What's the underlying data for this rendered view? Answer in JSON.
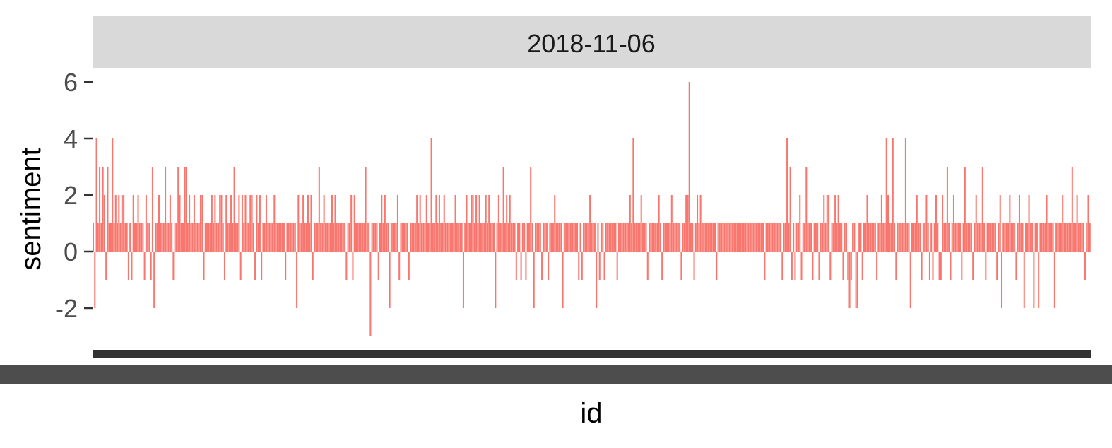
{
  "chart_data": {
    "type": "bar",
    "facet_label": "2018-11-06",
    "xlabel": "id",
    "ylabel": "sentiment",
    "ylim": [
      -3.5,
      6.2
    ],
    "yticks": [
      -2,
      0,
      2,
      4,
      6
    ],
    "ytick_labels": [
      "-2",
      "0",
      "2",
      "4",
      "6"
    ],
    "legend": "none",
    "grid": false,
    "colors": {
      "bar": "#F8766D",
      "strip_bg": "#D9D9D9",
      "axis_band": "#333333",
      "lower_band": "#4D4D4D",
      "tick": "#333333"
    },
    "values": [
      1,
      -2,
      4,
      1,
      3,
      1,
      3,
      2,
      -1,
      3,
      1,
      1,
      4,
      1,
      2,
      1,
      2,
      1,
      2,
      2,
      1,
      1,
      -1,
      1,
      -1,
      2,
      1,
      1,
      2,
      1,
      1,
      1,
      -1,
      2,
      1,
      1,
      -1,
      3,
      -2,
      1,
      1,
      2,
      1,
      1,
      1,
      3,
      1,
      1,
      2,
      1,
      -1,
      1,
      1,
      3,
      2,
      1,
      1,
      3,
      3,
      1,
      2,
      1,
      1,
      2,
      1,
      1,
      1,
      2,
      2,
      -1,
      1,
      1,
      1,
      1,
      2,
      1,
      2,
      1,
      1,
      2,
      2,
      1,
      -1,
      2,
      1,
      1,
      2,
      1,
      3,
      1,
      1,
      2,
      -1,
      2,
      1,
      2,
      1,
      1,
      2,
      2,
      1,
      -1,
      2,
      1,
      2,
      -1,
      1,
      1,
      2,
      1,
      1,
      1,
      1,
      2,
      1,
      1,
      1,
      1,
      1,
      1,
      -1,
      1,
      1,
      1,
      1,
      1,
      1,
      -2,
      2,
      1,
      1,
      2,
      1,
      1,
      2,
      1,
      2,
      -1,
      1,
      1,
      1,
      3,
      1,
      1,
      2,
      1,
      1,
      1,
      1,
      2,
      1,
      2,
      1,
      1,
      1,
      1,
      1,
      1,
      -1,
      1,
      1,
      2,
      -1,
      2,
      1,
      1,
      1,
      1,
      1,
      1,
      3,
      1,
      1,
      -3,
      1,
      1,
      1,
      1,
      -1,
      1,
      2,
      1,
      2,
      1,
      1,
      -2,
      1,
      1,
      1,
      1,
      2,
      -1,
      1,
      1,
      1,
      1,
      1,
      -1,
      1,
      1,
      1,
      1,
      2,
      1,
      2,
      1,
      1,
      1,
      2,
      1,
      1,
      4,
      1,
      1,
      2,
      1,
      2,
      1,
      1,
      2,
      1,
      1,
      1,
      1,
      1,
      1,
      2,
      1,
      1,
      1,
      1,
      -2,
      1,
      2,
      1,
      1,
      2,
      2,
      1,
      2,
      1,
      2,
      1,
      1,
      1,
      2,
      1,
      2,
      1,
      1,
      1,
      -2,
      1,
      2,
      1,
      1,
      3,
      1,
      2,
      1,
      2,
      1,
      1,
      1,
      -1,
      1,
      1,
      -1,
      1,
      1,
      -1,
      1,
      1,
      3,
      1,
      -2,
      1,
      1,
      1,
      1,
      -1,
      1,
      1,
      1,
      -1,
      1,
      1,
      1,
      2,
      1,
      1,
      1,
      1,
      -2,
      1,
      1,
      1,
      1,
      1,
      1,
      1,
      1,
      1,
      -1,
      1,
      -1,
      1,
      1,
      1,
      1,
      2,
      1,
      1,
      1,
      -2,
      1,
      -1,
      1,
      1,
      -1,
      1,
      1,
      1,
      1,
      1,
      1,
      1,
      -1,
      1,
      1,
      1,
      1,
      1,
      1,
      1,
      2,
      1,
      4,
      1,
      1,
      1,
      1,
      2,
      1,
      1,
      1,
      -1,
      1,
      1,
      1,
      1,
      1,
      1,
      2,
      1,
      -1,
      1,
      1,
      1,
      1,
      1,
      2,
      1,
      1,
      1,
      1,
      1,
      -1,
      1,
      1,
      2,
      2,
      6,
      1,
      1,
      -1,
      1,
      2,
      1,
      2,
      1,
      1,
      1,
      1,
      1,
      1,
      1,
      1,
      1,
      -1,
      1,
      1,
      1,
      1,
      1,
      1,
      1,
      1,
      1,
      1,
      1,
      1,
      1,
      1,
      1,
      1,
      1,
      1,
      1,
      1,
      1,
      1,
      1,
      1,
      1,
      1,
      1,
      1,
      1,
      -1,
      1,
      1,
      1,
      1,
      1,
      1,
      1,
      1,
      1,
      1,
      -1,
      1,
      1,
      4,
      1,
      3,
      -1,
      1,
      -1,
      1,
      1,
      2,
      -1,
      1,
      1,
      3,
      1,
      1,
      1,
      -1,
      1,
      1,
      1,
      -1,
      1,
      1,
      2,
      1,
      2,
      2,
      -1,
      1,
      1,
      2,
      1,
      2,
      1,
      1,
      -1,
      1,
      1,
      -1,
      -2,
      -1,
      1,
      1,
      -2,
      -2,
      1,
      1,
      -1,
      1,
      1,
      2,
      1,
      1,
      1,
      1,
      1,
      -1,
      1,
      1,
      2,
      1,
      1,
      4,
      2,
      1,
      1,
      4,
      1,
      -1,
      1,
      1,
      1,
      1,
      1,
      4,
      1,
      1,
      -2,
      1,
      1,
      1,
      2,
      1,
      1,
      -1,
      1,
      1,
      2,
      1,
      -1,
      1,
      -1,
      1,
      2,
      1,
      -1,
      -1,
      2,
      1,
      1,
      3,
      1,
      -1,
      1,
      2,
      1,
      1,
      1,
      1,
      -1,
      1,
      3,
      1,
      1,
      1,
      1,
      -1,
      1,
      2,
      1,
      1,
      1,
      3,
      1,
      -1,
      1,
      1,
      1,
      1,
      1,
      1,
      -1,
      1,
      2,
      -2,
      1,
      1,
      1,
      1,
      2,
      1,
      1,
      1,
      -1,
      1,
      2,
      1,
      1,
      -2,
      1,
      1,
      2,
      1,
      1,
      -2,
      1,
      1,
      -2,
      1,
      1,
      1,
      1,
      2,
      1,
      1,
      1,
      1,
      -2,
      1,
      1,
      1,
      1,
      2,
      1,
      1,
      1,
      1,
      1,
      3,
      1,
      1,
      2,
      1,
      1,
      1,
      1,
      -1,
      1,
      2,
      1
    ]
  }
}
